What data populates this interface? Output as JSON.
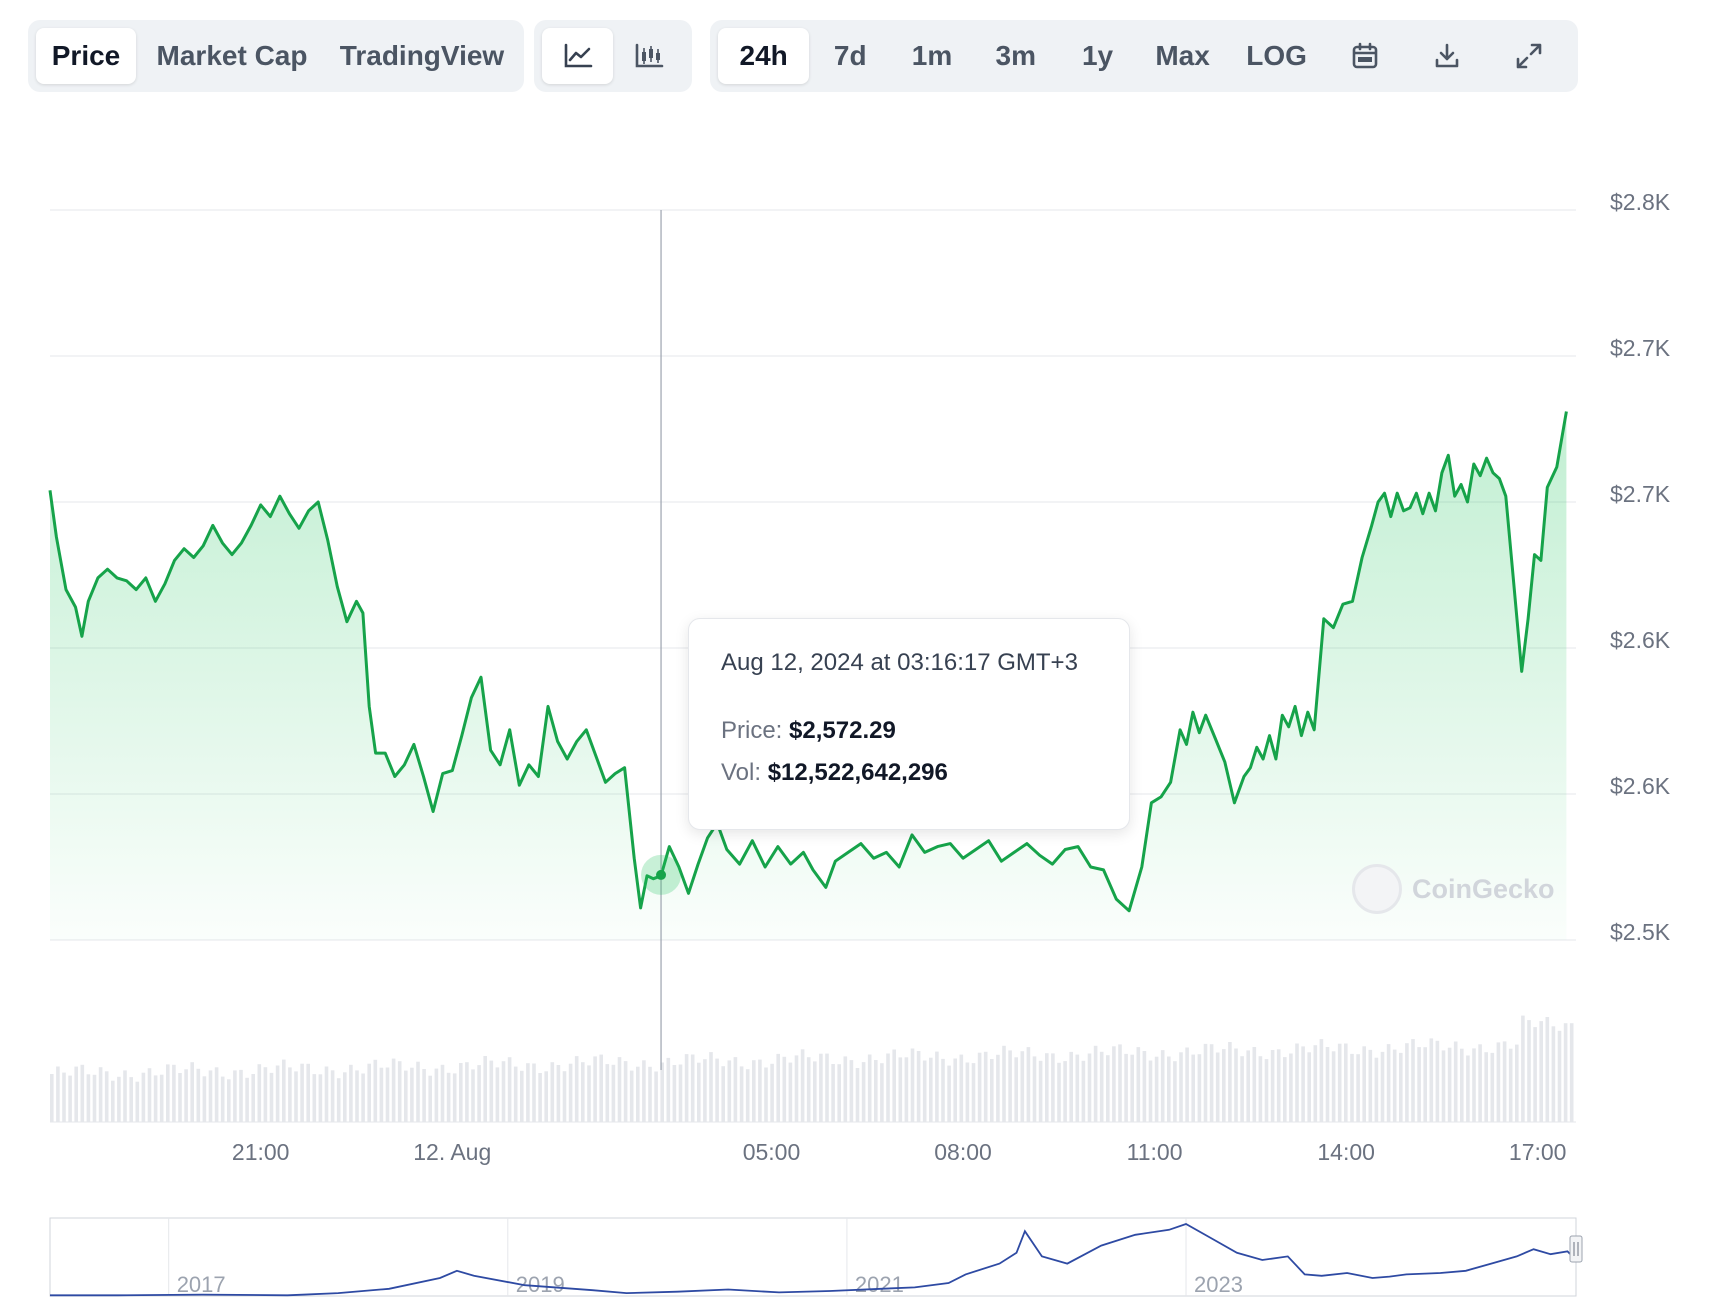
{
  "toolbar": {
    "view_tabs": [
      {
        "label": "Price",
        "active": true
      },
      {
        "label": "Market Cap",
        "active": false
      },
      {
        "label": "TradingView",
        "active": false
      }
    ],
    "chart_type_buttons": [
      {
        "icon": "line-chart-icon",
        "active": true
      },
      {
        "icon": "candlestick-chart-icon",
        "active": false
      }
    ],
    "range_tabs": [
      {
        "label": "24h",
        "active": true
      },
      {
        "label": "7d",
        "active": false
      },
      {
        "label": "1m",
        "active": false
      },
      {
        "label": "3m",
        "active": false
      },
      {
        "label": "1y",
        "active": false
      },
      {
        "label": "Max",
        "active": false
      },
      {
        "label": "LOG",
        "active": false
      }
    ],
    "action_icons": [
      "calendar-icon",
      "download-icon",
      "fullscreen-icon"
    ]
  },
  "tooltip": {
    "date": "Aug 12, 2024 at 03:16:17 GMT+3",
    "price_label": "Price:",
    "price_value": "$2,572.29",
    "vol_label": "Vol:",
    "vol_value": "$12,522,642,296"
  },
  "watermark": "CoinGecko",
  "colors": {
    "line": "#16a34a",
    "fill": "#22c55e",
    "navigator": "#2e4aa3",
    "marker": "#16a34a"
  },
  "chart_data": {
    "type": "line",
    "title": "",
    "y_tick_labels": [
      "$2.8K",
      "$2.7K",
      "$2.7K",
      "$2.6K",
      "$2.6K",
      "$2.5K"
    ],
    "y_ticks": [
      2800,
      2750,
      2700,
      2650,
      2600,
      2550
    ],
    "ylim": [
      2550,
      2800
    ],
    "x_tick_labels": [
      "21:00",
      "12. Aug",
      "05:00",
      "08:00",
      "11:00",
      "14:00",
      "17:00"
    ],
    "x_ticks": [
      -3,
      0,
      5,
      8,
      11,
      14,
      17
    ],
    "x_range_hours": [
      -6.3,
      17.6
    ],
    "x_unit": "hours relative to 12 Aug 00:00 GMT+3",
    "grid": true,
    "series": [
      {
        "values": [
          [
            -6.3,
            2704
          ],
          [
            -6.2,
            2688
          ],
          [
            -6.05,
            2670
          ],
          [
            -5.9,
            2664
          ],
          [
            -5.8,
            2654
          ],
          [
            -5.7,
            2666
          ],
          [
            -5.55,
            2674
          ],
          [
            -5.4,
            2677
          ],
          [
            -5.25,
            2674
          ],
          [
            -5.1,
            2673
          ],
          [
            -4.95,
            2670
          ],
          [
            -4.8,
            2674
          ],
          [
            -4.65,
            2666
          ],
          [
            -4.5,
            2672
          ],
          [
            -4.35,
            2680
          ],
          [
            -4.2,
            2684
          ],
          [
            -4.05,
            2681
          ],
          [
            -3.9,
            2685
          ],
          [
            -3.75,
            2692
          ],
          [
            -3.6,
            2686
          ],
          [
            -3.45,
            2682
          ],
          [
            -3.3,
            2686
          ],
          [
            -3.15,
            2692
          ],
          [
            -3.0,
            2699
          ],
          [
            -2.85,
            2695
          ],
          [
            -2.7,
            2702
          ],
          [
            -2.55,
            2696
          ],
          [
            -2.4,
            2691
          ],
          [
            -2.25,
            2697
          ],
          [
            -2.1,
            2700
          ],
          [
            -1.95,
            2687
          ],
          [
            -1.8,
            2671
          ],
          [
            -1.65,
            2659
          ],
          [
            -1.5,
            2666
          ],
          [
            -1.4,
            2662
          ],
          [
            -1.3,
            2630
          ],
          [
            -1.2,
            2614
          ],
          [
            -1.05,
            2614
          ],
          [
            -0.9,
            2606
          ],
          [
            -0.75,
            2610
          ],
          [
            -0.6,
            2617
          ],
          [
            -0.45,
            2606
          ],
          [
            -0.3,
            2594
          ],
          [
            -0.15,
            2607
          ],
          [
            0.0,
            2608
          ],
          [
            0.15,
            2620
          ],
          [
            0.3,
            2633
          ],
          [
            0.45,
            2640
          ],
          [
            0.6,
            2615
          ],
          [
            0.75,
            2610
          ],
          [
            0.9,
            2622
          ],
          [
            1.05,
            2603
          ],
          [
            1.2,
            2610
          ],
          [
            1.35,
            2606
          ],
          [
            1.5,
            2630
          ],
          [
            1.65,
            2618
          ],
          [
            1.8,
            2612
          ],
          [
            1.95,
            2618
          ],
          [
            2.1,
            2622
          ],
          [
            2.25,
            2613
          ],
          [
            2.4,
            2604
          ],
          [
            2.55,
            2607
          ],
          [
            2.7,
            2609
          ],
          [
            2.85,
            2578
          ],
          [
            2.95,
            2561
          ],
          [
            3.05,
            2572
          ],
          [
            3.15,
            2571
          ],
          [
            3.27,
            2572
          ],
          [
            3.4,
            2582
          ],
          [
            3.55,
            2575
          ],
          [
            3.7,
            2566
          ],
          [
            3.85,
            2576
          ],
          [
            4.0,
            2585
          ],
          [
            4.15,
            2590
          ],
          [
            4.3,
            2581
          ],
          [
            4.5,
            2576
          ],
          [
            4.7,
            2584
          ],
          [
            4.9,
            2575
          ],
          [
            5.1,
            2582
          ],
          [
            5.3,
            2576
          ],
          [
            5.5,
            2580
          ],
          [
            5.65,
            2574
          ],
          [
            5.85,
            2568
          ],
          [
            6.0,
            2577
          ],
          [
            6.2,
            2580
          ],
          [
            6.4,
            2583
          ],
          [
            6.6,
            2578
          ],
          [
            6.8,
            2580
          ],
          [
            7.0,
            2575
          ],
          [
            7.2,
            2586
          ],
          [
            7.4,
            2580
          ],
          [
            7.6,
            2582
          ],
          [
            7.8,
            2583
          ],
          [
            8.0,
            2578
          ],
          [
            8.2,
            2581
          ],
          [
            8.4,
            2584
          ],
          [
            8.6,
            2577
          ],
          [
            8.8,
            2580
          ],
          [
            9.0,
            2583
          ],
          [
            9.2,
            2579
          ],
          [
            9.4,
            2576
          ],
          [
            9.6,
            2581
          ],
          [
            9.8,
            2582
          ],
          [
            10.0,
            2575
          ],
          [
            10.2,
            2574
          ],
          [
            10.4,
            2564
          ],
          [
            10.6,
            2560
          ],
          [
            10.8,
            2575
          ],
          [
            10.95,
            2597
          ],
          [
            11.1,
            2599
          ],
          [
            11.25,
            2604
          ],
          [
            11.4,
            2622
          ],
          [
            11.5,
            2617
          ],
          [
            11.6,
            2628
          ],
          [
            11.7,
            2621
          ],
          [
            11.8,
            2627
          ],
          [
            11.95,
            2619
          ],
          [
            12.1,
            2611
          ],
          [
            12.25,
            2597
          ],
          [
            12.4,
            2606
          ],
          [
            12.5,
            2609
          ],
          [
            12.6,
            2616
          ],
          [
            12.7,
            2612
          ],
          [
            12.8,
            2620
          ],
          [
            12.9,
            2612
          ],
          [
            13.0,
            2627
          ],
          [
            13.1,
            2623
          ],
          [
            13.2,
            2630
          ],
          [
            13.3,
            2620
          ],
          [
            13.4,
            2628
          ],
          [
            13.5,
            2622
          ],
          [
            13.65,
            2660
          ],
          [
            13.8,
            2657
          ],
          [
            13.95,
            2665
          ],
          [
            14.1,
            2666
          ],
          [
            14.25,
            2681
          ],
          [
            14.4,
            2692
          ],
          [
            14.5,
            2700
          ],
          [
            14.6,
            2703
          ],
          [
            14.7,
            2695
          ],
          [
            14.8,
            2703
          ],
          [
            14.9,
            2697
          ],
          [
            15.0,
            2698
          ],
          [
            15.1,
            2703
          ],
          [
            15.2,
            2696
          ],
          [
            15.3,
            2703
          ],
          [
            15.4,
            2697
          ],
          [
            15.5,
            2710
          ],
          [
            15.6,
            2716
          ],
          [
            15.7,
            2702
          ],
          [
            15.8,
            2706
          ],
          [
            15.9,
            2700
          ],
          [
            16.0,
            2713
          ],
          [
            16.1,
            2709
          ],
          [
            16.2,
            2715
          ],
          [
            16.3,
            2710
          ],
          [
            16.4,
            2708
          ],
          [
            16.5,
            2702
          ],
          [
            16.6,
            2678
          ],
          [
            16.75,
            2642
          ],
          [
            16.85,
            2660
          ],
          [
            16.95,
            2682
          ],
          [
            17.05,
            2680
          ],
          [
            17.15,
            2705
          ],
          [
            17.3,
            2712
          ],
          [
            17.45,
            2731
          ]
        ]
      }
    ],
    "hover": {
      "x": 3.27,
      "y": 2572.29
    },
    "navigator": {
      "type": "area",
      "x_tick_labels": [
        "2017",
        "2019",
        "2021",
        "2023"
      ],
      "x_ticks": [
        2016.3,
        2018.3,
        2020.3,
        2022.3
      ],
      "x_range": [
        2015.6,
        2024.6
      ],
      "values": [
        [
          2015.6,
          0.01
        ],
        [
          2016.0,
          0.01
        ],
        [
          2016.5,
          0.02
        ],
        [
          2017.0,
          0.01
        ],
        [
          2017.3,
          0.04
        ],
        [
          2017.6,
          0.1
        ],
        [
          2017.9,
          0.25
        ],
        [
          2018.0,
          0.35
        ],
        [
          2018.1,
          0.28
        ],
        [
          2018.4,
          0.15
        ],
        [
          2018.8,
          0.08
        ],
        [
          2019.0,
          0.04
        ],
        [
          2019.3,
          0.06
        ],
        [
          2019.6,
          0.09
        ],
        [
          2019.9,
          0.05
        ],
        [
          2020.2,
          0.07
        ],
        [
          2020.5,
          0.1
        ],
        [
          2020.7,
          0.12
        ],
        [
          2020.9,
          0.18
        ],
        [
          2021.0,
          0.3
        ],
        [
          2021.2,
          0.45
        ],
        [
          2021.3,
          0.6
        ],
        [
          2021.35,
          0.9
        ],
        [
          2021.45,
          0.55
        ],
        [
          2021.6,
          0.45
        ],
        [
          2021.8,
          0.7
        ],
        [
          2022.0,
          0.85
        ],
        [
          2022.2,
          0.92
        ],
        [
          2022.3,
          1.0
        ],
        [
          2022.45,
          0.8
        ],
        [
          2022.6,
          0.6
        ],
        [
          2022.75,
          0.5
        ],
        [
          2022.9,
          0.55
        ],
        [
          2023.0,
          0.3
        ],
        [
          2023.1,
          0.28
        ],
        [
          2023.25,
          0.32
        ],
        [
          2023.4,
          0.25
        ],
        [
          2023.5,
          0.27
        ],
        [
          2023.6,
          0.3
        ],
        [
          2023.8,
          0.32
        ],
        [
          2023.95,
          0.35
        ],
        [
          2024.1,
          0.45
        ],
        [
          2024.25,
          0.55
        ],
        [
          2024.35,
          0.65
        ],
        [
          2024.45,
          0.58
        ],
        [
          2024.55,
          0.62
        ],
        [
          2024.6,
          0.5
        ]
      ]
    }
  }
}
